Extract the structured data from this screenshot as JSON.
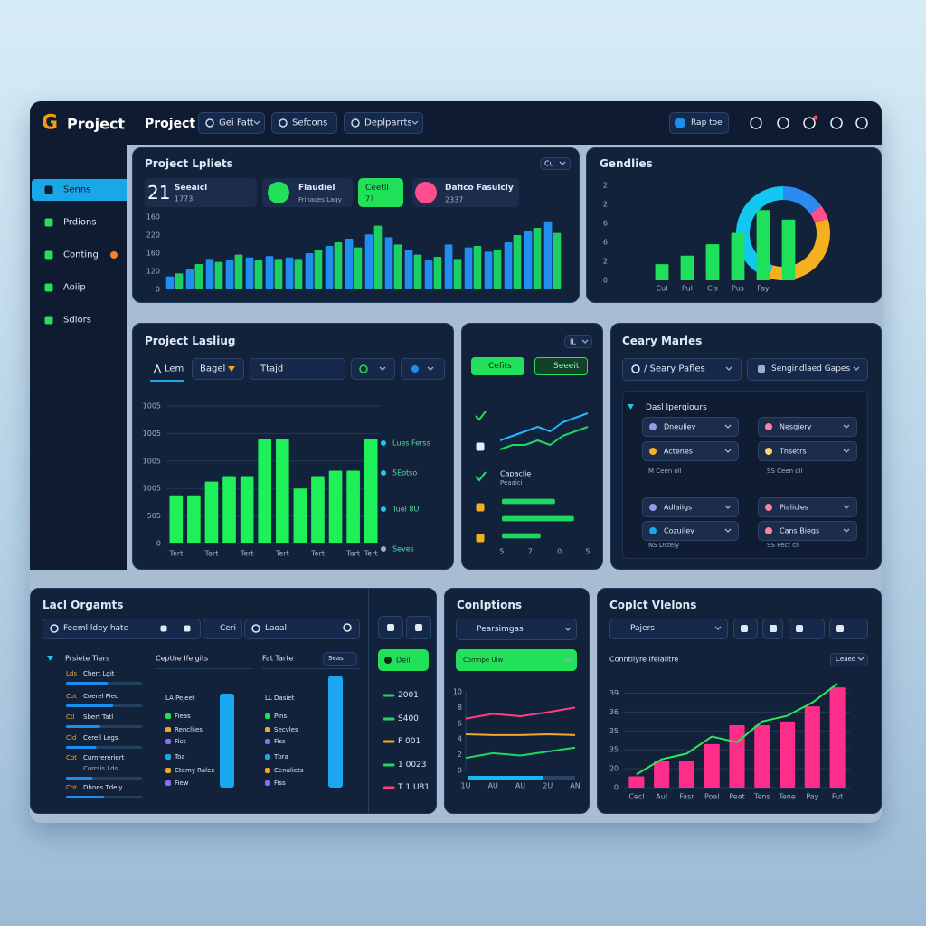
{
  "header": {
    "logo_mark": "G",
    "logo_text": "Project",
    "title": "Project",
    "menus": [
      "Gei Fatt",
      "Sefcons",
      "Deplparrts"
    ],
    "search": "Rap toe"
  },
  "sidebar": {
    "items": [
      "Senns",
      "Prdions",
      "Conting",
      "Aoiip",
      "Sdiors"
    ],
    "active": 0,
    "badge": 2
  },
  "updates": {
    "title": "Project Lpliets",
    "menu": "Cu",
    "stats": [
      {
        "value": "21",
        "label": "Seeaicl",
        "sub": "1773"
      },
      {
        "label": "Flaudiel",
        "sub": "Frinaces Laqy"
      },
      {
        "label": "Ceetll",
        "sub": "7?"
      },
      {
        "label": "Dafico Fasulcly",
        "sub": "2337"
      }
    ]
  },
  "gendlies": {
    "title": "Gendlies"
  },
  "listing": {
    "title": "Project Lasliug",
    "tabs": [
      "Lem",
      "Bagel",
      "Ttajd"
    ],
    "annotations": [
      "Lues Ferss",
      "5Eotso",
      "Tuel 8U",
      "Seves"
    ]
  },
  "actions": {
    "menu": "IL",
    "buttons": [
      "Cefits",
      "Seeeit"
    ],
    "items": [
      "Capaclie",
      "Peaaici"
    ]
  },
  "markets": {
    "title": "Ceary Marles",
    "search": "/ Seary Pafles",
    "filter": "Sengindlaed Gapes",
    "group": "Dasl Ipergiours",
    "cards": [
      "Dneuliey",
      "Nesgiery",
      "Actenes",
      "Tnsetrs",
      "Adlaiigs",
      "Pialicles",
      "Cozuiley",
      "Cans Biegs"
    ],
    "notes": [
      "M Ceen oll",
      "SS Ceen oll",
      "NS Dsteiy",
      "SS Pect cil"
    ]
  },
  "orgs": {
    "title": "Lacl Orgamts",
    "search": "Feeml ldey hate",
    "buttons": [
      "Ceri",
      "Laoal"
    ],
    "tree": "Prsiete Tiers",
    "items": [
      {
        "tag": "Lds",
        "text": "Chert Lgit",
        "progress": 55
      },
      {
        "tag": "Cot",
        "text": "Coerel Pied",
        "progress": 62
      },
      {
        "tag": "Ctl",
        "text": "Sbert Tatl",
        "progress": 45
      },
      {
        "tag": "Cld",
        "text": "Cerell Legs",
        "progress": 40
      },
      {
        "tag": "Cot",
        "text": "Curnrereriert",
        "sub": "Corrsis Lds",
        "progress": 35
      },
      {
        "tag": "Cot",
        "text": "Dhnes Tdely",
        "progress": 50
      }
    ],
    "columns": [
      {
        "title": "Cepthe Ifelgits",
        "items": [
          "LA Pejeet",
          "Fieas",
          "Rencliies",
          "Fics",
          "Toa",
          "Ctemy Ralee",
          "Fiew"
        ],
        "level": 80
      },
      {
        "title": "Fat Tarte",
        "menu": "Seas",
        "items": [
          "LL Dasiet",
          "Pins",
          "Secvles",
          "Fiss",
          "Tbra",
          "Cenaliets",
          "Fiss"
        ],
        "level": 95
      }
    ],
    "tag": "Deil",
    "legend": [
      {
        "text": "2001",
        "color": "#1ed760"
      },
      {
        "text": "S400",
        "color": "#1ed760"
      },
      {
        "text": "F 001",
        "color": "#f5a623"
      },
      {
        "text": "1 0023",
        "color": "#1ed760"
      },
      {
        "text": "T 1 U81",
        "color": "#ff3d7f"
      }
    ]
  },
  "completions": {
    "title": "Conlptions",
    "dropdown": "Pearsimgas",
    "button": "Comnpe Ulw"
  },
  "visions": {
    "title": "Coplct Vlelons",
    "dropdown": "Pajers",
    "subtitle": "Conntliyre Ifelalitre",
    "menu": "Ceaed"
  },
  "chart_data": [
    {
      "type": "bar",
      "series": [
        {
          "color": "#1f8ef0",
          "values": [
            18,
            28,
            42,
            40,
            44,
            46,
            44,
            50,
            60,
            70,
            76,
            72,
            55,
            40,
            62,
            58,
            52,
            65,
            80,
            94
          ]
        },
        {
          "color": "#1ccf62",
          "values": [
            22,
            35,
            38,
            48,
            40,
            42,
            42,
            55,
            65,
            58,
            88,
            62,
            48,
            45,
            42,
            60,
            55,
            75,
            85,
            78
          ]
        }
      ],
      "ylim": [
        0,
        110
      ],
      "yticks": [
        0,
        {
          "value": 25,
          "label": "120"
        },
        {
          "value": 50,
          "label": "160"
        },
        {
          "value": 75,
          "label": "220"
        },
        {
          "value": 100,
          "label": "160"
        }
      ],
      "grid": false
    },
    {
      "type": "bar",
      "categories": [
        "Cul",
        "Pul",
        "Cis",
        "Pus",
        "Fay",
        null
      ],
      "values": [
        1.7,
        2.6,
        3.8,
        5,
        7.4,
        6.4
      ],
      "color": "#1ee05a",
      "ylim": [
        0,
        10
      ],
      "yticks": [
        0,
        2,
        {
          "value": 4,
          "label": "6"
        },
        6,
        {
          "value": 8,
          "label": "2"
        },
        {
          "value": 10,
          "label": "2"
        }
      ],
      "grid": false
    },
    {
      "type": "pie",
      "values": [
        15,
        5,
        35,
        45
      ],
      "colors": [
        "#2a8cf0",
        "#ff4d8d",
        "#f5b020",
        "#12c8f0"
      ]
    },
    {
      "type": "bar",
      "categories": [
        "Tert",
        null,
        "Tart",
        null,
        "Tert",
        null,
        "Tert",
        null,
        "Tert",
        null,
        "Tart",
        "Tert"
      ],
      "values": [
        35,
        35,
        45,
        49,
        49,
        76,
        76,
        40,
        49,
        53,
        53,
        76
      ],
      "color": "#1ef05a",
      "ylim": [
        0,
        100
      ],
      "yticks": [
        0,
        {
          "value": 20,
          "label": "505"
        },
        {
          "value": 40,
          "label": "1005"
        },
        {
          "value": 60,
          "label": "1005"
        },
        {
          "value": 80,
          "label": "1005"
        },
        {
          "value": 100,
          "label": "1005"
        }
      ],
      "grid": true
    },
    {
      "type": "line",
      "x": [
        1,
        2,
        3,
        4,
        5,
        6,
        7,
        8
      ],
      "xlim": [
        1,
        8
      ],
      "ylim": [
        0,
        10
      ],
      "series": [
        {
          "color": "#22b8ff",
          "values": [
            3,
            4,
            5,
            6,
            5,
            7,
            8,
            9
          ]
        },
        {
          "color": "#1ed760",
          "values": [
            1,
            2,
            2,
            3,
            2,
            4,
            5,
            6
          ]
        }
      ]
    },
    {
      "type": "bar",
      "orientation": "horizontal",
      "values": [
        62,
        84,
        45
      ],
      "color": "#1ed760",
      "xlim": [
        0,
        100
      ],
      "xticks": [
        {
          "value": 0,
          "label": "5"
        },
        {
          "value": 33,
          "label": "7"
        },
        {
          "value": 67,
          "label": "0"
        },
        {
          "value": 100,
          "label": "5"
        }
      ]
    },
    {
      "type": "line",
      "categories": [
        "1U",
        "AU",
        "AU",
        "2U",
        "AN"
      ],
      "ylim": [
        0,
        10
      ],
      "yticks": [
        0,
        2,
        4,
        6,
        8,
        10
      ],
      "grid": false,
      "series": [
        {
          "color": "#ff3d7f",
          "values": [
            6.6,
            7.2,
            6.9,
            7.4,
            8
          ]
        },
        {
          "color": "#f5a623",
          "values": [
            4.6,
            4.5,
            4.5,
            4.6,
            4.5
          ]
        },
        {
          "color": "#1ed760",
          "values": [
            1.6,
            2.2,
            1.9,
            2.4,
            2.9
          ]
        }
      ]
    },
    {
      "type": "bar",
      "categories": [
        "Cecl",
        "Aul",
        "Fasr",
        "Poal",
        "Peat",
        "Tens",
        "Tene",
        "Pay",
        "Fut"
      ],
      "ylim": [
        0,
        55
      ],
      "yticks": [
        0,
        {
          "value": 10,
          "label": "20"
        },
        {
          "value": 20,
          "label": "35"
        },
        {
          "value": 30,
          "label": "35"
        },
        {
          "value": 40,
          "label": "36"
        },
        {
          "value": 50,
          "label": "39"
        }
      ],
      "grid": true,
      "series": [
        {
          "type": "bar",
          "color": "#ff2d8a",
          "values": [
            6,
            14,
            14,
            23,
            33,
            33,
            35,
            43,
            53
          ]
        },
        {
          "type": "line",
          "color": "#2ee65a",
          "values": [
            7,
            15,
            18,
            27,
            24,
            35,
            38,
            45,
            55
          ]
        }
      ]
    }
  ]
}
